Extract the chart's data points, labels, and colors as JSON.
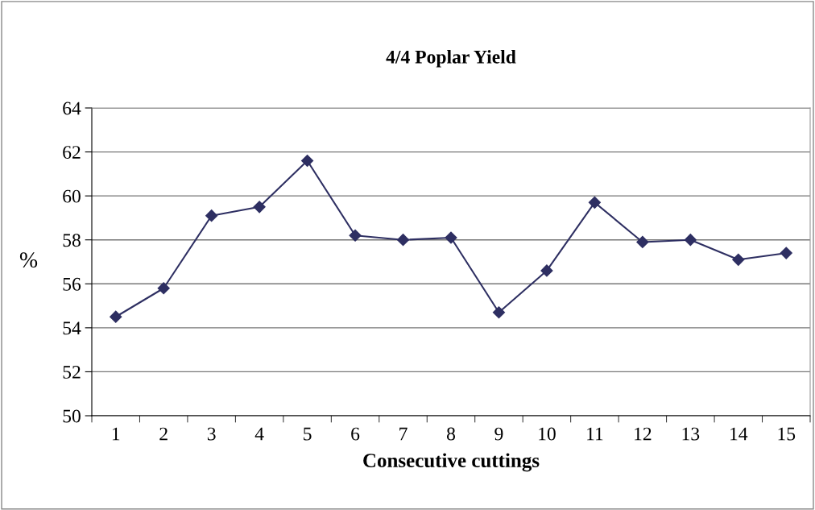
{
  "chart_data": {
    "type": "line",
    "title": "4/4 Poplar Yield",
    "xlabel": "Consecutive cuttings",
    "ylabel": "%",
    "categories": [
      "1",
      "2",
      "3",
      "4",
      "5",
      "6",
      "7",
      "8",
      "9",
      "10",
      "11",
      "12",
      "13",
      "14",
      "15"
    ],
    "series": [
      {
        "color": "#2e2f62",
        "values": [
          54.5,
          55.8,
          59.1,
          59.5,
          61.6,
          58.2,
          58.0,
          58.1,
          54.7,
          56.6,
          59.7,
          57.9,
          58.0,
          57.1,
          57.4
        ]
      }
    ],
    "ylim": [
      50,
      64
    ],
    "yticks": [
      50,
      52,
      54,
      56,
      58,
      60,
      62,
      64
    ],
    "grid": "y",
    "marker": "diamond",
    "line_style": "solid",
    "legend": false
  }
}
